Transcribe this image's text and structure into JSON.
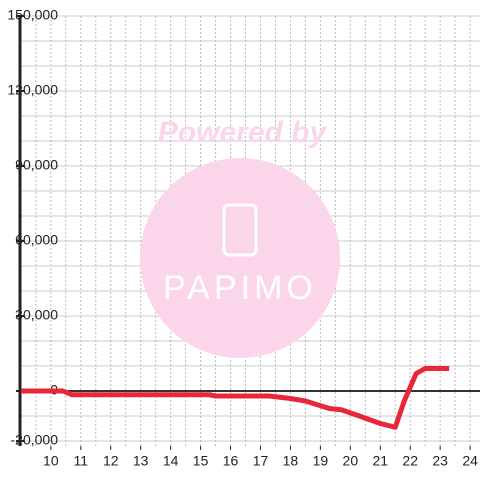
{
  "chart_data": {
    "type": "line",
    "x": [
      9,
      10,
      10.4,
      10.7,
      15.3,
      15.5,
      17.3,
      18,
      18.5,
      19.3,
      19.7,
      20.3,
      21,
      21.5,
      21.8,
      22.2,
      22.5,
      23.3
    ],
    "series": [
      {
        "color": "#e8283a",
        "values": [
          0,
          0,
          0,
          -1500,
          -1500,
          -2000,
          -2000,
          -3000,
          -4000,
          -7000,
          -7500,
          -10000,
          -13000,
          -14500,
          -4000,
          7000,
          9000,
          9000
        ]
      }
    ],
    "xlim": [
      8.97,
      24.33
    ],
    "ylim": [
      -22000,
      150000
    ],
    "xticks": [
      10,
      11,
      12,
      13,
      14,
      15,
      16,
      17,
      18,
      19,
      20,
      21,
      22,
      23,
      24
    ],
    "yticks": [
      {
        "value": -20000,
        "label": "-20,000"
      },
      0,
      {
        "value": 30000,
        "label": "30,000"
      },
      {
        "value": 60000,
        "label": "60,000"
      },
      {
        "value": 90000,
        "label": "90,000"
      },
      {
        "value": 120000,
        "label": "120,000"
      },
      {
        "value": 150000,
        "label": "150,000"
      }
    ],
    "ygrid": [
      -20000,
      -10000,
      10000,
      20000,
      30000,
      40000,
      50000,
      60000,
      70000,
      80000,
      90000,
      100000,
      110000,
      120000,
      130000,
      140000,
      150000
    ],
    "xgrid": [
      9.5,
      10,
      10.5,
      11,
      11.5,
      12,
      12.5,
      13,
      13.5,
      14,
      14.5,
      15,
      15.5,
      16,
      16.5,
      17,
      17.5,
      18,
      18.5,
      19,
      19.5,
      20,
      20.5,
      21,
      21.5,
      22,
      22.5,
      23,
      23.5,
      24
    ],
    "grid": true,
    "watermark": {
      "line1": "Powered by",
      "line2": "PAPIMO"
    }
  }
}
